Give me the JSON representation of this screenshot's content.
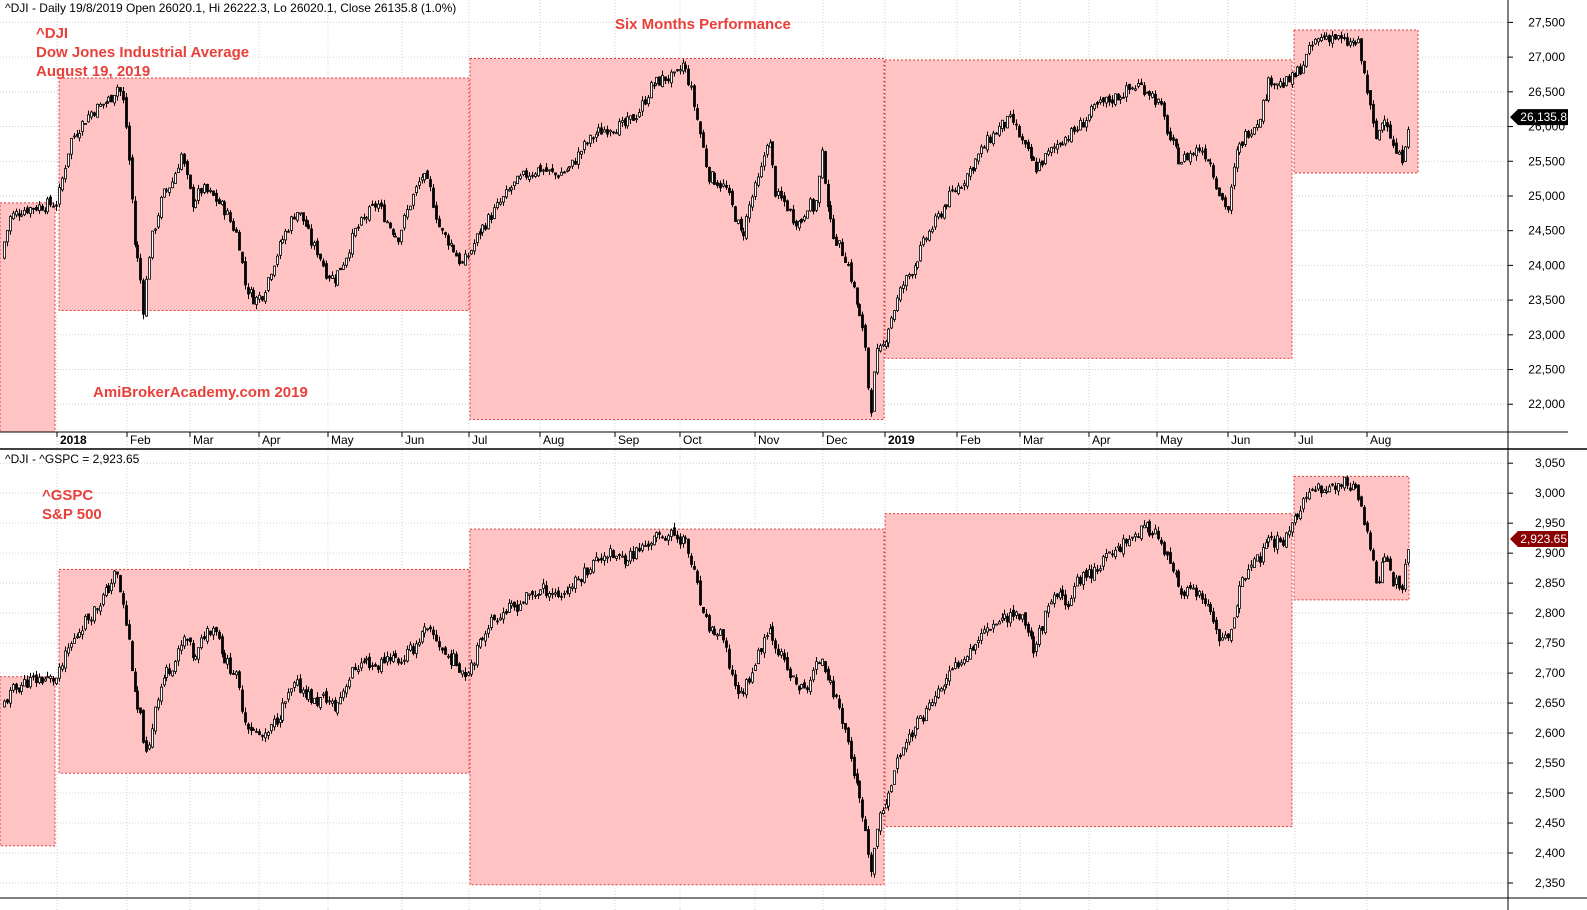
{
  "colors": {
    "zone_fill": "#ffc0c0",
    "zone_border": "#e03c3c",
    "annotation": "#e8403a",
    "last_badge_dji": "#000000",
    "last_badge_spx": "#8b0000",
    "candle": "#000000"
  },
  "panel_dji": {
    "header": "^DJI - Daily 19/8/2019 Open 26020.1, Hi 26222.3, Lo 26020.1, Close 26135.8 (1.0%)",
    "title": "Six Months Performance",
    "annotation_lines": [
      "^DJI",
      "Dow Jones Industrial Average",
      "August 19, 2019"
    ],
    "watermark": "AmiBrokerAcademy.com    2019",
    "last_value_label": "26,135.8"
  },
  "panel_spx": {
    "header": "^DJI - ^GSPC = 2,923.65",
    "annotation_lines": [
      "^GSPC",
      "S&P 500"
    ],
    "last_value_label": "2,923.65"
  },
  "chart_data": [
    {
      "type": "candlestick",
      "symbol": "^DJI",
      "period": "Daily",
      "ylim": [
        21600,
        27650
      ],
      "y_ticks": [
        "22,000",
        "22,500",
        "23,000",
        "23,500",
        "24,000",
        "24,500",
        "25,000",
        "25,500",
        "26,000",
        "26,500",
        "27,000",
        "27,500"
      ],
      "x_ticks": [
        "2018",
        "Feb",
        "Mar",
        "Apr",
        "May",
        "Jun",
        "Jul",
        "Aug",
        "Sep",
        "Oct",
        "Nov",
        "Dec",
        "2019",
        "Feb",
        "Mar",
        "Apr",
        "May",
        "Jun",
        "Jul",
        "Aug"
      ],
      "last": {
        "date": "2019-08-19",
        "open": 26020.1,
        "high": 26222.3,
        "low": 26020.1,
        "close": 26135.8,
        "change_pct": 1.0
      },
      "six_month_ranges": [
        {
          "from": "Dec 2017",
          "to": "Dec 2017",
          "low": 21600,
          "high": 24900
        },
        {
          "from": "Jan 2018",
          "to": "Jun 2018",
          "low": 23350,
          "high": 26700
        },
        {
          "from": "Jul 2018",
          "to": "Dec 2018",
          "low": 21780,
          "high": 26980
        },
        {
          "from": "Jan 2019",
          "to": "Jun 2019",
          "low": 22660,
          "high": 26960
        },
        {
          "from": "Jul 2019",
          "to": "Aug 2019",
          "low": 25330,
          "high": 27390
        }
      ],
      "path": [
        [
          0,
          24100
        ],
        [
          10,
          24700
        ],
        [
          22,
          24800
        ],
        [
          38,
          24850
        ],
        [
          57,
          24900
        ],
        [
          70,
          25800
        ],
        [
          90,
          26200
        ],
        [
          110,
          26400
        ],
        [
          118,
          26600
        ],
        [
          124,
          26300
        ],
        [
          130,
          25300
        ],
        [
          135,
          24200
        ],
        [
          139,
          24000
        ],
        [
          143,
          23350
        ],
        [
          150,
          24300
        ],
        [
          162,
          25000
        ],
        [
          172,
          25200
        ],
        [
          181,
          25600
        ],
        [
          192,
          24900
        ],
        [
          202,
          25100
        ],
        [
          212,
          25000
        ],
        [
          225,
          24800
        ],
        [
          238,
          24400
        ],
        [
          245,
          23700
        ],
        [
          255,
          23500
        ],
        [
          263,
          23600
        ],
        [
          272,
          24000
        ],
        [
          283,
          24400
        ],
        [
          296,
          24800
        ],
        [
          305,
          24600
        ],
        [
          312,
          24300
        ],
        [
          318,
          24200
        ],
        [
          326,
          23900
        ],
        [
          334,
          23800
        ],
        [
          345,
          24100
        ],
        [
          355,
          24500
        ],
        [
          366,
          24700
        ],
        [
          377,
          24900
        ],
        [
          388,
          24600
        ],
        [
          398,
          24400
        ],
        [
          410,
          24900
        ],
        [
          422,
          25300
        ],
        [
          430,
          25100
        ],
        [
          440,
          24500
        ],
        [
          451,
          24300
        ],
        [
          462,
          24000
        ],
        [
          470,
          24200
        ],
        [
          480,
          24500
        ],
        [
          495,
          24800
        ],
        [
          510,
          25100
        ],
        [
          525,
          25300
        ],
        [
          540,
          25400
        ],
        [
          555,
          25300
        ],
        [
          570,
          25400
        ],
        [
          583,
          25700
        ],
        [
          596,
          25900
        ],
        [
          610,
          26000
        ],
        [
          624,
          26000
        ],
        [
          638,
          26200
        ],
        [
          652,
          26600
        ],
        [
          665,
          26700
        ],
        [
          675,
          26700
        ],
        [
          683,
          26900
        ],
        [
          690,
          26600
        ],
        [
          700,
          25900
        ],
        [
          708,
          25300
        ],
        [
          718,
          25200
        ],
        [
          726,
          25100
        ],
        [
          735,
          24700
        ],
        [
          742,
          24400
        ],
        [
          750,
          24900
        ],
        [
          760,
          25300
        ],
        [
          768,
          25900
        ],
        [
          776,
          25000
        ],
        [
          785,
          24900
        ],
        [
          792,
          24700
        ],
        [
          800,
          24600
        ],
        [
          808,
          24900
        ],
        [
          815,
          24800
        ],
        [
          822,
          25600
        ],
        [
          830,
          24600
        ],
        [
          838,
          24300
        ],
        [
          846,
          24100
        ],
        [
          853,
          23700
        ],
        [
          860,
          23200
        ],
        [
          866,
          22800
        ],
        [
          870,
          21800
        ],
        [
          876,
          22700
        ],
        [
          882,
          22800
        ],
        [
          890,
          23200
        ],
        [
          902,
          23700
        ],
        [
          914,
          24000
        ],
        [
          926,
          24400
        ],
        [
          938,
          24700
        ],
        [
          950,
          25000
        ],
        [
          962,
          25200
        ],
        [
          975,
          25500
        ],
        [
          988,
          25800
        ],
        [
          1000,
          26000
        ],
        [
          1012,
          26100
        ],
        [
          1024,
          25700
        ],
        [
          1036,
          25400
        ],
        [
          1048,
          25600
        ],
        [
          1060,
          25800
        ],
        [
          1072,
          25900
        ],
        [
          1085,
          26100
        ],
        [
          1098,
          26300
        ],
        [
          1112,
          26400
        ],
        [
          1125,
          26500
        ],
        [
          1138,
          26600
        ],
        [
          1150,
          26500
        ],
        [
          1160,
          26300
        ],
        [
          1170,
          25800
        ],
        [
          1180,
          25500
        ],
        [
          1190,
          25600
        ],
        [
          1200,
          25700
        ],
        [
          1210,
          25500
        ],
        [
          1220,
          25000
        ],
        [
          1228,
          24800
        ],
        [
          1236,
          25600
        ],
        [
          1246,
          25900
        ],
        [
          1258,
          26100
        ],
        [
          1270,
          26700
        ],
        [
          1282,
          26600
        ],
        [
          1293,
          26700
        ],
        [
          1303,
          26900
        ],
        [
          1313,
          27200
        ],
        [
          1323,
          27300
        ],
        [
          1333,
          27300
        ],
        [
          1345,
          27200
        ],
        [
          1358,
          27200
        ],
        [
          1366,
          26600
        ],
        [
          1375,
          25800
        ],
        [
          1385,
          26200
        ],
        [
          1393,
          25700
        ],
        [
          1401,
          25500
        ],
        [
          1409,
          26135
        ]
      ]
    },
    {
      "type": "candlestick",
      "symbol": "^GSPC",
      "period": "Daily",
      "ylim": [
        2325,
        3062
      ],
      "y_ticks": [
        "2,350",
        "2,400",
        "2,450",
        "2,500",
        "2,550",
        "2,600",
        "2,650",
        "2,700",
        "2,750",
        "2,800",
        "2,850",
        "2,900",
        "2,950",
        "3,000",
        "3,050"
      ],
      "last": {
        "date": "2019-08-19",
        "close": 2923.65
      },
      "six_month_ranges": [
        {
          "from": "Dec 2017",
          "to": "Dec 2017",
          "low": 2412,
          "high": 2694
        },
        {
          "from": "Jan 2018",
          "to": "Jun 2018",
          "low": 2533,
          "high": 2873
        },
        {
          "from": "Jul 2018",
          "to": "Dec 2018",
          "low": 2347,
          "high": 2940
        },
        {
          "from": "Jan 2019",
          "to": "Jun 2019",
          "low": 2444,
          "high": 2966
        },
        {
          "from": "Jul 2019",
          "to": "Aug 2019",
          "low": 2822,
          "high": 3028
        }
      ],
      "path": [
        [
          0,
          2640
        ],
        [
          12,
          2670
        ],
        [
          25,
          2685
        ],
        [
          40,
          2690
        ],
        [
          57,
          2690
        ],
        [
          68,
          2740
        ],
        [
          82,
          2780
        ],
        [
          96,
          2810
        ],
        [
          108,
          2840
        ],
        [
          116,
          2870
        ],
        [
          123,
          2810
        ],
        [
          130,
          2740
        ],
        [
          135,
          2650
        ],
        [
          141,
          2620
        ],
        [
          147,
          2550
        ],
        [
          155,
          2650
        ],
        [
          165,
          2700
        ],
        [
          175,
          2720
        ],
        [
          185,
          2760
        ],
        [
          195,
          2720
        ],
        [
          205,
          2770
        ],
        [
          215,
          2780
        ],
        [
          225,
          2720
        ],
        [
          235,
          2700
        ],
        [
          245,
          2620
        ],
        [
          255,
          2600
        ],
        [
          265,
          2590
        ],
        [
          275,
          2620
        ],
        [
          285,
          2650
        ],
        [
          295,
          2680
        ],
        [
          305,
          2670
        ],
        [
          315,
          2650
        ],
        [
          325,
          2660
        ],
        [
          335,
          2640
        ],
        [
          345,
          2680
        ],
        [
          355,
          2710
        ],
        [
          366,
          2720
        ],
        [
          377,
          2710
        ],
        [
          388,
          2730
        ],
        [
          400,
          2720
        ],
        [
          412,
          2740
        ],
        [
          424,
          2770
        ],
        [
          435,
          2760
        ],
        [
          445,
          2730
        ],
        [
          455,
          2720
        ],
        [
          465,
          2700
        ],
        [
          475,
          2730
        ],
        [
          487,
          2780
        ],
        [
          500,
          2800
        ],
        [
          515,
          2810
        ],
        [
          530,
          2830
        ],
        [
          545,
          2840
        ],
        [
          560,
          2830
        ],
        [
          575,
          2850
        ],
        [
          590,
          2880
        ],
        [
          605,
          2900
        ],
        [
          620,
          2890
        ],
        [
          635,
          2900
        ],
        [
          650,
          2920
        ],
        [
          663,
          2930
        ],
        [
          675,
          2930
        ],
        [
          685,
          2920
        ],
        [
          695,
          2860
        ],
        [
          703,
          2790
        ],
        [
          712,
          2770
        ],
        [
          722,
          2760
        ],
        [
          731,
          2700
        ],
        [
          740,
          2660
        ],
        [
          748,
          2690
        ],
        [
          758,
          2730
        ],
        [
          768,
          2780
        ],
        [
          778,
          2740
        ],
        [
          788,
          2700
        ],
        [
          796,
          2680
        ],
        [
          805,
          2670
        ],
        [
          813,
          2700
        ],
        [
          822,
          2730
        ],
        [
          830,
          2680
        ],
        [
          838,
          2650
        ],
        [
          846,
          2600
        ],
        [
          853,
          2540
        ],
        [
          860,
          2480
        ],
        [
          866,
          2420
        ],
        [
          870,
          2360
        ],
        [
          877,
          2440
        ],
        [
          884,
          2480
        ],
        [
          893,
          2530
        ],
        [
          903,
          2580
        ],
        [
          915,
          2610
        ],
        [
          927,
          2640
        ],
        [
          939,
          2670
        ],
        [
          951,
          2700
        ],
        [
          963,
          2730
        ],
        [
          975,
          2750
        ],
        [
          988,
          2780
        ],
        [
          1000,
          2790
        ],
        [
          1012,
          2800
        ],
        [
          1024,
          2790
        ],
        [
          1034,
          2740
        ],
        [
          1044,
          2790
        ],
        [
          1056,
          2830
        ],
        [
          1068,
          2820
        ],
        [
          1080,
          2860
        ],
        [
          1093,
          2870
        ],
        [
          1105,
          2890
        ],
        [
          1118,
          2910
        ],
        [
          1132,
          2930
        ],
        [
          1145,
          2940
        ],
        [
          1155,
          2940
        ],
        [
          1163,
          2900
        ],
        [
          1172,
          2870
        ],
        [
          1182,
          2830
        ],
        [
          1192,
          2840
        ],
        [
          1202,
          2820
        ],
        [
          1212,
          2790
        ],
        [
          1220,
          2760
        ],
        [
          1228,
          2750
        ],
        [
          1236,
          2820
        ],
        [
          1246,
          2870
        ],
        [
          1258,
          2890
        ],
        [
          1270,
          2920
        ],
        [
          1282,
          2920
        ],
        [
          1292,
          2950
        ],
        [
          1302,
          2980
        ],
        [
          1312,
          3000
        ],
        [
          1322,
          3010
        ],
        [
          1335,
          3010
        ],
        [
          1348,
          3020
        ],
        [
          1360,
          2990
        ],
        [
          1368,
          2920
        ],
        [
          1376,
          2850
        ],
        [
          1386,
          2900
        ],
        [
          1394,
          2850
        ],
        [
          1402,
          2840
        ],
        [
          1409,
          2923
        ]
      ]
    }
  ]
}
